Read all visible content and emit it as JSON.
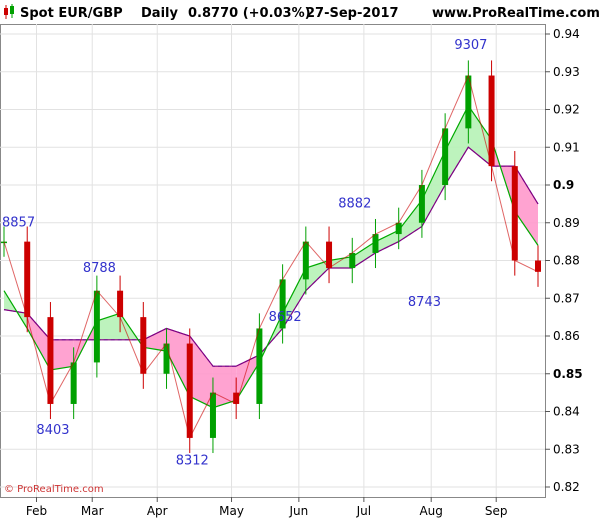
{
  "header": {
    "instrument": "Spot EUR/GBP",
    "period": "Daily",
    "price": "0.8770 (+0.03%)",
    "date": "27-Sep-2017",
    "site": "www.ProRealTime.com",
    "icon": "candlestick-icon"
  },
  "watermark": "© ProRealTime.com",
  "colors": {
    "up_candle": "#00a000",
    "down_candle": "#cc0000",
    "tenkan": "#00aa00",
    "kijun": "#800080",
    "cloud_bull": "#b6f2b6",
    "cloud_bear": "#ff99cc",
    "cloud_edge": "#3333cc",
    "annotation": "#3333cc"
  },
  "chart_data": {
    "type": "line",
    "title": "Spot EUR/GBP Daily",
    "x": [
      "Jan 26",
      "Feb 6",
      "Feb 17",
      "Feb 28",
      "Mar 10",
      "Mar 20",
      "Mar 31",
      "Apr 11",
      "Apr 19",
      "Apr 28",
      "May 10",
      "May 22",
      "Jun 2",
      "Jun 13",
      "Jun 24",
      "Jul 5",
      "Jul 16",
      "Jul 27",
      "Aug 7",
      "Aug 18",
      "Aug 29",
      "Sep 8",
      "Sep 18",
      "Sep 27"
    ],
    "series": [
      {
        "values": [
          0.885,
          0.865,
          0.842,
          0.853,
          0.872,
          0.865,
          0.85,
          0.858,
          0.833,
          0.845,
          0.842,
          0.862,
          0.875,
          0.885,
          0.878,
          0.882,
          0.887,
          0.89,
          0.9,
          0.915,
          0.929,
          0.905,
          0.88,
          0.877
        ]
      },
      {
        "values": [
          0.872,
          0.862,
          0.851,
          0.852,
          0.864,
          0.866,
          0.857,
          0.856,
          0.844,
          0.841,
          0.843,
          0.853,
          0.866,
          0.878,
          0.88,
          0.881,
          0.885,
          0.888,
          0.896,
          0.909,
          0.921,
          0.912,
          0.893,
          0.884
        ]
      },
      {
        "values": [
          0.867,
          0.866,
          0.859,
          0.859,
          0.859,
          0.859,
          0.859,
          0.862,
          0.86,
          0.852,
          0.852,
          0.855,
          0.862,
          0.872,
          0.878,
          0.878,
          0.882,
          0.885,
          0.889,
          0.9,
          0.91,
          0.905,
          0.905,
          0.895
        ]
      }
    ],
    "annotations": [
      "8857",
      "8788",
      "8403",
      "8312",
      "8652",
      "8882",
      "8743",
      "9307"
    ],
    "x_tick_labels": [
      "Feb",
      "Mar",
      "Apr",
      "May",
      "Jun",
      "Jul",
      "Aug",
      "Sep"
    ],
    "y_tick_labels": [
      "0.82",
      "0.83",
      "0.84",
      "0.85",
      "0.86",
      "0.87",
      "0.88",
      "0.89",
      "0.9",
      "0.91",
      "0.92",
      "0.93",
      "0.94"
    ],
    "ylim": [
      0.82,
      0.94
    ],
    "grid": true
  }
}
